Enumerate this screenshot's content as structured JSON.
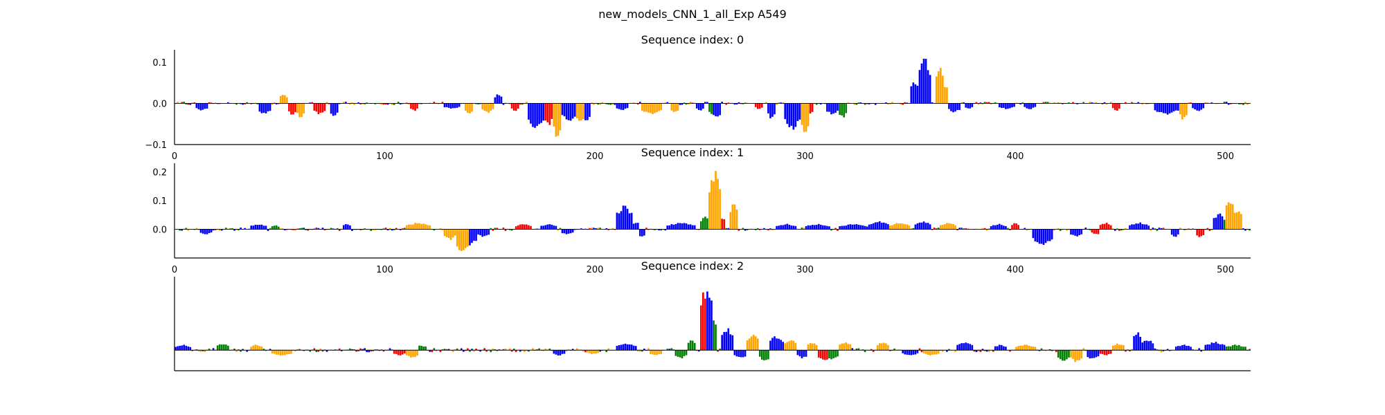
{
  "figure_title": "new_models_CNN_1_all_Exp A549",
  "colors": {
    "A": "#008000",
    "C": "#0000ff",
    "G": "#ffa500",
    "T": "#ff0000"
  },
  "chart_data": [
    {
      "type": "bar",
      "subtype": "sequence-logo-attribution",
      "title": "Sequence index: 0",
      "xlim": [
        0,
        512
      ],
      "ylim": [
        -0.1,
        0.13
      ],
      "xticks": [
        0,
        100,
        200,
        300,
        400,
        500
      ],
      "yticks": [
        {
          "v": 0.1,
          "label": "0.1"
        },
        {
          "v": 0.0,
          "label": "0.0"
        },
        {
          "v": -0.1,
          "label": "−0.1"
        }
      ],
      "show_xtick_labels": true,
      "show_ytick_labels": true,
      "noise": 0.004,
      "features": [
        {
          "x0": 10,
          "x1": 16,
          "amp": -0.02,
          "base": "C"
        },
        {
          "x0": 40,
          "x1": 46,
          "amp": -0.03,
          "base": "C"
        },
        {
          "x0": 50,
          "x1": 54,
          "amp": 0.025,
          "base": "G"
        },
        {
          "x0": 54,
          "x1": 58,
          "amp": -0.03,
          "base": "T"
        },
        {
          "x0": 58,
          "x1": 62,
          "amp": -0.04,
          "base": "G"
        },
        {
          "x0": 66,
          "x1": 72,
          "amp": -0.03,
          "base": "T"
        },
        {
          "x0": 74,
          "x1": 78,
          "amp": 0.02,
          "base": "C"
        },
        {
          "x0": 74,
          "x1": 78,
          "amp": -0.035,
          "base": "C"
        },
        {
          "x0": 112,
          "x1": 116,
          "amp": -0.02,
          "base": "T"
        },
        {
          "x0": 128,
          "x1": 136,
          "amp": -0.015,
          "base": "C"
        },
        {
          "x0": 138,
          "x1": 142,
          "amp": -0.03,
          "base": "G"
        },
        {
          "x0": 146,
          "x1": 152,
          "amp": -0.025,
          "base": "G"
        },
        {
          "x0": 152,
          "x1": 156,
          "amp": 0.025,
          "base": "C"
        },
        {
          "x0": 160,
          "x1": 164,
          "amp": -0.02,
          "base": "T"
        },
        {
          "x0": 168,
          "x1": 176,
          "amp": -0.07,
          "base": "C"
        },
        {
          "x0": 176,
          "x1": 180,
          "amp": -0.06,
          "base": "T"
        },
        {
          "x0": 180,
          "x1": 184,
          "amp": -0.095,
          "base": "G"
        },
        {
          "x0": 184,
          "x1": 192,
          "amp": -0.05,
          "base": "C"
        },
        {
          "x0": 190,
          "x1": 196,
          "amp": -0.05,
          "base": "G"
        },
        {
          "x0": 194,
          "x1": 198,
          "amp": -0.055,
          "base": "C"
        },
        {
          "x0": 210,
          "x1": 216,
          "amp": -0.02,
          "base": "C"
        },
        {
          "x0": 222,
          "x1": 232,
          "amp": -0.03,
          "base": "G"
        },
        {
          "x0": 236,
          "x1": 240,
          "amp": -0.025,
          "base": "G"
        },
        {
          "x0": 248,
          "x1": 252,
          "amp": -0.02,
          "base": "C"
        },
        {
          "x0": 254,
          "x1": 258,
          "amp": -0.03,
          "base": "A"
        },
        {
          "x0": 256,
          "x1": 260,
          "amp": -0.04,
          "base": "C"
        },
        {
          "x0": 276,
          "x1": 280,
          "amp": -0.015,
          "base": "T"
        },
        {
          "x0": 282,
          "x1": 286,
          "amp": -0.04,
          "base": "C"
        },
        {
          "x0": 290,
          "x1": 298,
          "amp": -0.07,
          "base": "C"
        },
        {
          "x0": 294,
          "x1": 298,
          "amp": 0.02,
          "base": "C"
        },
        {
          "x0": 298,
          "x1": 302,
          "amp": -0.085,
          "base": "G"
        },
        {
          "x0": 300,
          "x1": 304,
          "amp": -0.03,
          "base": "T"
        },
        {
          "x0": 310,
          "x1": 316,
          "amp": -0.03,
          "base": "C"
        },
        {
          "x0": 316,
          "x1": 320,
          "amp": -0.04,
          "base": "A"
        },
        {
          "x0": 350,
          "x1": 354,
          "amp": 0.06,
          "base": "C"
        },
        {
          "x0": 354,
          "x1": 360,
          "amp": 0.12,
          "base": "C"
        },
        {
          "x0": 358,
          "x1": 360,
          "amp": 0.06,
          "base": "T"
        },
        {
          "x0": 362,
          "x1": 366,
          "amp": 0.1,
          "base": "G"
        },
        {
          "x0": 366,
          "x1": 368,
          "amp": 0.05,
          "base": "G"
        },
        {
          "x0": 368,
          "x1": 374,
          "amp": -0.025,
          "base": "C"
        },
        {
          "x0": 376,
          "x1": 380,
          "amp": -0.015,
          "base": "C"
        },
        {
          "x0": 392,
          "x1": 400,
          "amp": -0.015,
          "base": "C"
        },
        {
          "x0": 404,
          "x1": 410,
          "amp": -0.015,
          "base": "C"
        },
        {
          "x0": 446,
          "x1": 450,
          "amp": -0.02,
          "base": "T"
        },
        {
          "x0": 466,
          "x1": 478,
          "amp": -0.03,
          "base": "C"
        },
        {
          "x0": 478,
          "x1": 482,
          "amp": -0.045,
          "base": "G"
        },
        {
          "x0": 484,
          "x1": 490,
          "amp": -0.02,
          "base": "C"
        }
      ]
    },
    {
      "type": "bar",
      "subtype": "sequence-logo-attribution",
      "title": "Sequence index: 1",
      "xlim": [
        0,
        512
      ],
      "ylim": [
        -0.1,
        0.23
      ],
      "xticks": [
        0,
        100,
        200,
        300,
        400,
        500
      ],
      "yticks": [
        {
          "v": 0.2,
          "label": "0.2"
        },
        {
          "v": 0.1,
          "label": "0.1"
        },
        {
          "v": 0.0,
          "label": "0.0"
        }
      ],
      "show_xtick_labels": true,
      "show_ytick_labels": true,
      "noise": 0.006,
      "features": [
        {
          "x0": 12,
          "x1": 18,
          "amp": -0.02,
          "base": "C"
        },
        {
          "x0": 36,
          "x1": 44,
          "amp": 0.02,
          "base": "C"
        },
        {
          "x0": 46,
          "x1": 50,
          "amp": 0.015,
          "base": "A"
        },
        {
          "x0": 80,
          "x1": 84,
          "amp": 0.02,
          "base": "C"
        },
        {
          "x0": 110,
          "x1": 122,
          "amp": 0.025,
          "base": "G"
        },
        {
          "x0": 128,
          "x1": 134,
          "amp": -0.04,
          "base": "G"
        },
        {
          "x0": 134,
          "x1": 140,
          "amp": -0.09,
          "base": "G"
        },
        {
          "x0": 138,
          "x1": 144,
          "amp": -0.06,
          "base": "C"
        },
        {
          "x0": 144,
          "x1": 150,
          "amp": -0.03,
          "base": "C"
        },
        {
          "x0": 162,
          "x1": 170,
          "amp": 0.02,
          "base": "T"
        },
        {
          "x0": 174,
          "x1": 182,
          "amp": 0.02,
          "base": "C"
        },
        {
          "x0": 184,
          "x1": 190,
          "amp": -0.02,
          "base": "C"
        },
        {
          "x0": 210,
          "x1": 218,
          "amp": 0.09,
          "base": "C"
        },
        {
          "x0": 218,
          "x1": 222,
          "amp": 0.03,
          "base": "C"
        },
        {
          "x0": 220,
          "x1": 224,
          "amp": -0.03,
          "base": "C"
        },
        {
          "x0": 234,
          "x1": 248,
          "amp": 0.025,
          "base": "C"
        },
        {
          "x0": 250,
          "x1": 258,
          "amp": 0.03,
          "base": "C"
        },
        {
          "x0": 250,
          "x1": 256,
          "amp": 0.05,
          "base": "A"
        },
        {
          "x0": 254,
          "x1": 260,
          "amp": 0.22,
          "base": "G"
        },
        {
          "x0": 256,
          "x1": 260,
          "amp": 0.09,
          "base": "A"
        },
        {
          "x0": 260,
          "x1": 262,
          "amp": 0.05,
          "base": "T"
        },
        {
          "x0": 264,
          "x1": 268,
          "amp": 0.1,
          "base": "G"
        },
        {
          "x0": 286,
          "x1": 296,
          "amp": 0.02,
          "base": "C"
        },
        {
          "x0": 300,
          "x1": 312,
          "amp": 0.02,
          "base": "C"
        },
        {
          "x0": 316,
          "x1": 330,
          "amp": 0.02,
          "base": "C"
        },
        {
          "x0": 330,
          "x1": 340,
          "amp": 0.03,
          "base": "C"
        },
        {
          "x0": 340,
          "x1": 350,
          "amp": 0.025,
          "base": "G"
        },
        {
          "x0": 352,
          "x1": 360,
          "amp": 0.03,
          "base": "C"
        },
        {
          "x0": 364,
          "x1": 372,
          "amp": 0.025,
          "base": "G"
        },
        {
          "x0": 388,
          "x1": 396,
          "amp": 0.02,
          "base": "C"
        },
        {
          "x0": 398,
          "x1": 402,
          "amp": 0.025,
          "base": "T"
        },
        {
          "x0": 408,
          "x1": 418,
          "amp": -0.06,
          "base": "C"
        },
        {
          "x0": 426,
          "x1": 432,
          "amp": -0.03,
          "base": "C"
        },
        {
          "x0": 436,
          "x1": 442,
          "amp": -0.02,
          "base": "T"
        },
        {
          "x0": 440,
          "x1": 446,
          "amp": 0.025,
          "base": "T"
        },
        {
          "x0": 454,
          "x1": 464,
          "amp": 0.025,
          "base": "C"
        },
        {
          "x0": 474,
          "x1": 478,
          "amp": -0.03,
          "base": "C"
        },
        {
          "x0": 486,
          "x1": 490,
          "amp": -0.03,
          "base": "T"
        },
        {
          "x0": 494,
          "x1": 500,
          "amp": 0.06,
          "base": "C"
        },
        {
          "x0": 500,
          "x1": 504,
          "amp": 0.12,
          "base": "G"
        },
        {
          "x0": 504,
          "x1": 508,
          "amp": 0.08,
          "base": "G"
        },
        {
          "x0": 498,
          "x1": 506,
          "amp": 0.05,
          "base": "A"
        }
      ]
    },
    {
      "type": "bar",
      "subtype": "sequence-logo-attribution",
      "title": "Sequence index: 2",
      "xlim": [
        0,
        512
      ],
      "ylim": [
        -0.07,
        0.25
      ],
      "xticks": [],
      "yticks": [],
      "show_xtick_labels": false,
      "show_ytick_labels": false,
      "noise": 0.007,
      "features": [
        {
          "x0": 0,
          "x1": 8,
          "amp": 0.02,
          "base": "C"
        },
        {
          "x0": 20,
          "x1": 26,
          "amp": 0.025,
          "base": "A"
        },
        {
          "x0": 36,
          "x1": 42,
          "amp": 0.02,
          "base": "G"
        },
        {
          "x0": 46,
          "x1": 56,
          "amp": -0.02,
          "base": "G"
        },
        {
          "x0": 104,
          "x1": 110,
          "amp": -0.02,
          "base": "T"
        },
        {
          "x0": 110,
          "x1": 116,
          "amp": -0.03,
          "base": "G"
        },
        {
          "x0": 112,
          "x1": 120,
          "amp": 0.02,
          "base": "A"
        },
        {
          "x0": 180,
          "x1": 186,
          "amp": -0.02,
          "base": "C"
        },
        {
          "x0": 196,
          "x1": 202,
          "amp": -0.015,
          "base": "G"
        },
        {
          "x0": 210,
          "x1": 220,
          "amp": 0.025,
          "base": "C"
        },
        {
          "x0": 226,
          "x1": 232,
          "amp": -0.02,
          "base": "G"
        },
        {
          "x0": 238,
          "x1": 244,
          "amp": -0.03,
          "base": "A"
        },
        {
          "x0": 244,
          "x1": 248,
          "amp": 0.04,
          "base": "A"
        },
        {
          "x0": 250,
          "x1": 254,
          "amp": 0.22,
          "base": "T"
        },
        {
          "x0": 252,
          "x1": 256,
          "amp": 0.24,
          "base": "C"
        },
        {
          "x0": 254,
          "x1": 258,
          "amp": 0.12,
          "base": "A"
        },
        {
          "x0": 260,
          "x1": 266,
          "amp": 0.08,
          "base": "C"
        },
        {
          "x0": 266,
          "x1": 274,
          "amp": -0.03,
          "base": "C"
        },
        {
          "x0": 272,
          "x1": 278,
          "amp": 0.06,
          "base": "G"
        },
        {
          "x0": 278,
          "x1": 284,
          "amp": -0.04,
          "base": "A"
        },
        {
          "x0": 282,
          "x1": 290,
          "amp": 0.05,
          "base": "C"
        },
        {
          "x0": 290,
          "x1": 296,
          "amp": 0.04,
          "base": "G"
        },
        {
          "x0": 296,
          "x1": 302,
          "amp": -0.03,
          "base": "C"
        },
        {
          "x0": 300,
          "x1": 306,
          "amp": 0.03,
          "base": "G"
        },
        {
          "x0": 306,
          "x1": 312,
          "amp": -0.04,
          "base": "T"
        },
        {
          "x0": 310,
          "x1": 316,
          "amp": -0.035,
          "base": "A"
        },
        {
          "x0": 316,
          "x1": 322,
          "amp": 0.03,
          "base": "G"
        },
        {
          "x0": 334,
          "x1": 340,
          "amp": 0.03,
          "base": "G"
        },
        {
          "x0": 346,
          "x1": 354,
          "amp": -0.02,
          "base": "C"
        },
        {
          "x0": 356,
          "x1": 364,
          "amp": -0.02,
          "base": "G"
        },
        {
          "x0": 372,
          "x1": 380,
          "amp": 0.03,
          "base": "C"
        },
        {
          "x0": 390,
          "x1": 396,
          "amp": 0.02,
          "base": "C"
        },
        {
          "x0": 400,
          "x1": 410,
          "amp": 0.02,
          "base": "G"
        },
        {
          "x0": 420,
          "x1": 426,
          "amp": -0.04,
          "base": "A"
        },
        {
          "x0": 426,
          "x1": 432,
          "amp": -0.045,
          "base": "G"
        },
        {
          "x0": 434,
          "x1": 440,
          "amp": -0.035,
          "base": "C"
        },
        {
          "x0": 440,
          "x1": 446,
          "amp": -0.02,
          "base": "T"
        },
        {
          "x0": 446,
          "x1": 452,
          "amp": 0.025,
          "base": "G"
        },
        {
          "x0": 456,
          "x1": 460,
          "amp": 0.07,
          "base": "C"
        },
        {
          "x0": 460,
          "x1": 466,
          "amp": 0.04,
          "base": "C"
        },
        {
          "x0": 476,
          "x1": 484,
          "amp": 0.02,
          "base": "C"
        },
        {
          "x0": 490,
          "x1": 500,
          "amp": 0.03,
          "base": "C"
        },
        {
          "x0": 500,
          "x1": 510,
          "amp": 0.02,
          "base": "A"
        }
      ]
    }
  ]
}
